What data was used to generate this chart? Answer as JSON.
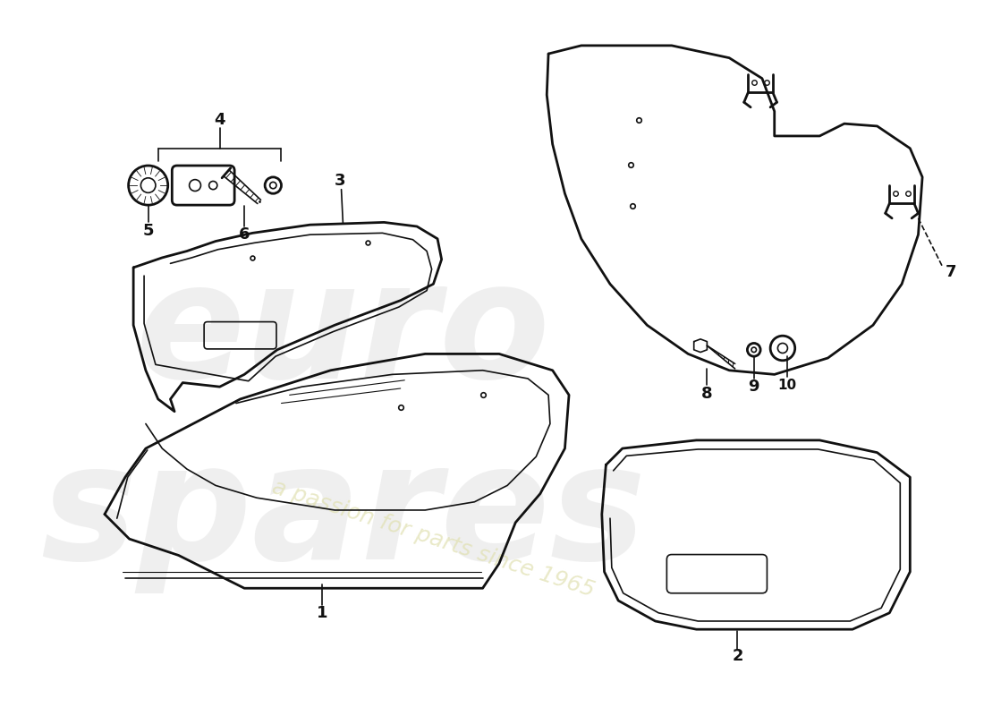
{
  "background_color": "#ffffff",
  "line_color": "#111111",
  "lw_main": 2.0,
  "lw_thin": 1.2,
  "lw_hair": 0.8,
  "watermark_text1": "euro\nspares",
  "watermark_text2": "a passion for parts since 1965",
  "wm_color1": "#cccccc",
  "wm_color2": "#e0e0b0"
}
